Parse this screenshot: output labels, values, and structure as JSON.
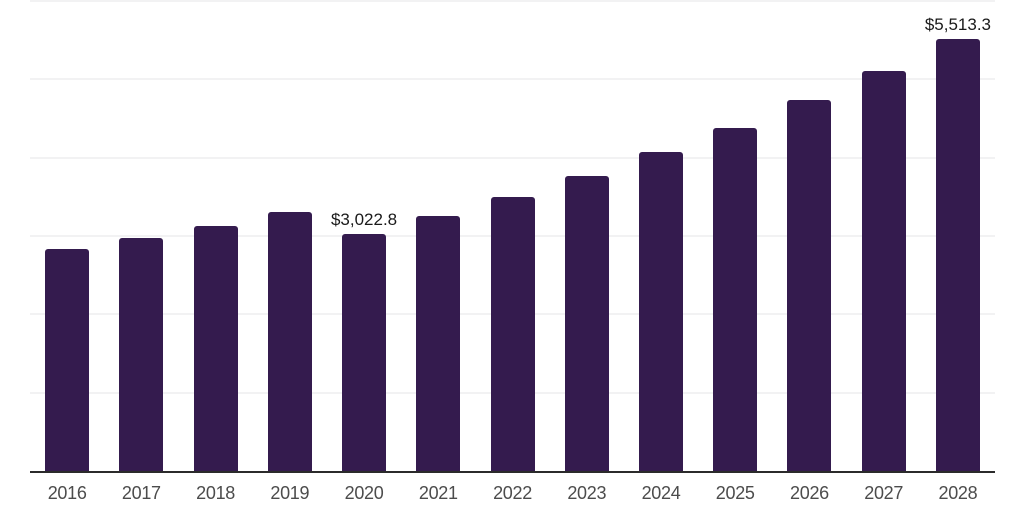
{
  "chart_data": {
    "type": "bar",
    "title": "",
    "xlabel": "",
    "ylabel": "",
    "categories": [
      "2016",
      "2017",
      "2018",
      "2019",
      "2020",
      "2021",
      "2022",
      "2023",
      "2024",
      "2025",
      "2026",
      "2027",
      "2028"
    ],
    "values": [
      2830,
      2980,
      3130,
      3310,
      3022.8,
      3255,
      3500,
      3770,
      4075,
      4385,
      4740,
      5110,
      5513.3
    ],
    "data_labels": [
      "",
      "",
      "",
      "",
      "$3,022.8",
      "",
      "",
      "",
      "",
      "",
      "",
      "",
      "$5,513.3"
    ],
    "ylim": [
      0,
      6000
    ],
    "gridline_step": 1000,
    "grid": "horizontal-only",
    "legend_position": "none",
    "y_axis_tick_labels": "none",
    "colors": {
      "bar": "#341b4e",
      "gridline": "#f2f2f3",
      "axis_line": "#2b2b2b",
      "value_label": "#1a1a1a",
      "tick_label": "#4c4c4c",
      "background": "#ffffff"
    }
  }
}
